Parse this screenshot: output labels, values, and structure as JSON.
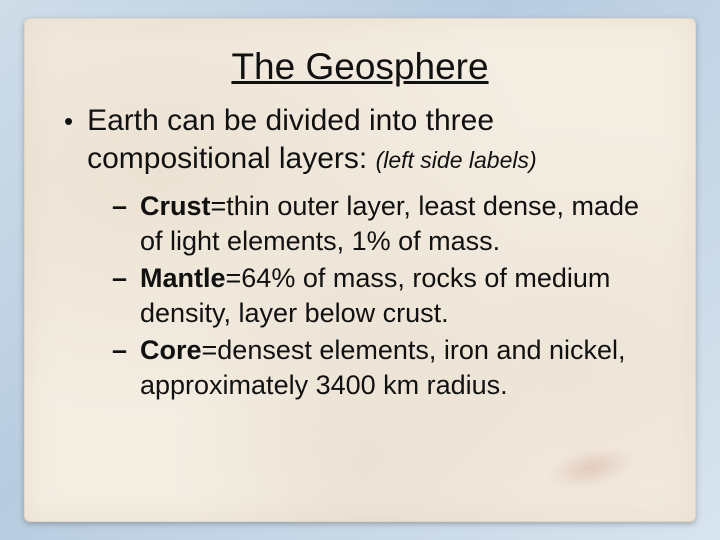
{
  "title": "The Geosphere",
  "main_bullet": {
    "lead": "Earth can be divided into three compositional layers: ",
    "note": "(left side labels)"
  },
  "sub_items": [
    {
      "term": "Crust",
      "rest": "=thin outer layer, least dense, made of light elements, 1% of mass."
    },
    {
      "term": "Mantle",
      "rest": "=64% of mass, rocks of medium density, layer below crust."
    },
    {
      "term": "Core",
      "rest": "=densest elements, iron and nickel, approximately 3400 km radius."
    }
  ],
  "colors": {
    "text": "#111111",
    "paper": "#f4ede2",
    "bg_gradient_a": "#cfdde9",
    "bg_gradient_b": "#b8cce0"
  }
}
